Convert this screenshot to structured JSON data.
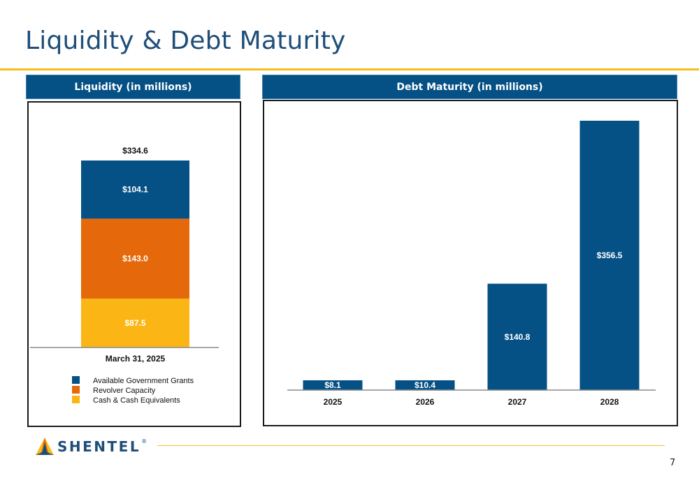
{
  "slide": {
    "title": "Liquidity & Debt Maturity",
    "page_number": "7",
    "logo_text": "SHENTEL",
    "logo_mark": "shentel-triangle-icon"
  },
  "colors": {
    "navy": "#055185",
    "orange": "#e5690b",
    "yellow": "#fbb615",
    "gold_rule": "#f6be1c",
    "title_blue": "#1f4e79"
  },
  "chart_data": [
    {
      "type": "bar",
      "stacked": true,
      "title": "Liquidity (in millions)",
      "categories": [
        "March 31, 2025"
      ],
      "total_label": "$334.6",
      "series": [
        {
          "name": "Cash & Cash Equivalents",
          "values": [
            87.5
          ],
          "label": "$87.5",
          "color": "#fbb615"
        },
        {
          "name": "Revolver Capacity",
          "values": [
            143.0
          ],
          "label": "$143.0",
          "color": "#e5690b"
        },
        {
          "name": "Available Government Grants",
          "values": [
            104.1
          ],
          "label": "$104.1",
          "color": "#055185"
        }
      ],
      "legend": [
        {
          "name": "Available Government Grants",
          "color": "#055185"
        },
        {
          "name": "Revolver Capacity",
          "color": "#e5690b"
        },
        {
          "name": "Cash & Cash Equivalents",
          "color": "#fbb615"
        }
      ],
      "legend_position": "bottom",
      "ylim": [
        0,
        334.6
      ],
      "grid": false
    },
    {
      "type": "bar",
      "title": "Debt Maturity (in millions)",
      "categories": [
        "2025",
        "2026",
        "2027",
        "2028"
      ],
      "values": [
        8.1,
        10.4,
        140.8,
        356.5
      ],
      "labels": [
        "$8.1",
        "$10.4",
        "$140.8",
        "$356.5"
      ],
      "color": "#055185",
      "ylim": [
        0,
        356.5
      ],
      "grid": false
    }
  ]
}
